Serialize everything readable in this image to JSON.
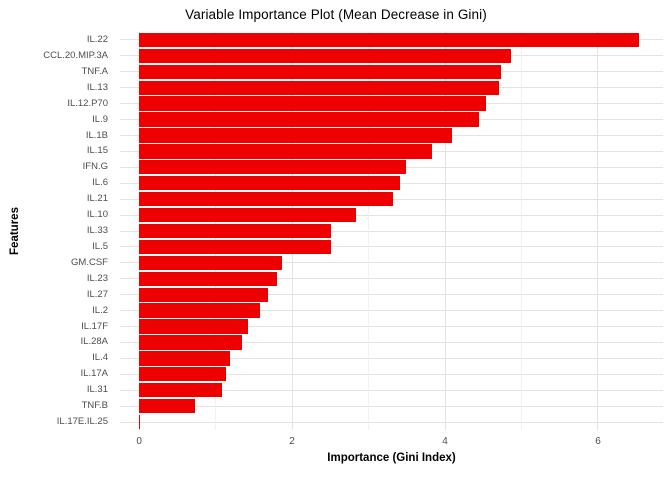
{
  "chart_data": {
    "type": "bar",
    "orientation": "horizontal",
    "title": "Variable Importance Plot (Mean Decrease in Gini)",
    "xlabel": "Importance (Gini Index)",
    "ylabel": "Features",
    "categories": [
      "IL.22",
      "CCL.20.MIP.3A",
      "TNF.A",
      "IL.13",
      "IL.12.P70",
      "IL.9",
      "IL.1B",
      "IL.15",
      "IFN.G",
      "IL.6",
      "IL.21",
      "IL.10",
      "IL.33",
      "IL.5",
      "GM.CSF",
      "IL.23",
      "IL.27",
      "IL.2",
      "IL.17F",
      "IL.28A",
      "IL.4",
      "IL.17A",
      "IL.31",
      "TNF.B",
      "IL.17E.IL.25"
    ],
    "values": [
      6.53,
      4.86,
      4.73,
      4.7,
      4.54,
      4.45,
      4.09,
      3.83,
      3.49,
      3.41,
      3.32,
      2.83,
      2.51,
      2.51,
      1.87,
      1.8,
      1.69,
      1.58,
      1.42,
      1.34,
      1.19,
      1.13,
      1.09,
      0.73,
      0.01
    ],
    "x_ticks": [
      0,
      2,
      4,
      6
    ],
    "x_minor_ticks": [
      1,
      3,
      5
    ],
    "xlim": [
      -0.25,
      6.85
    ],
    "bar_width_fraction": 0.9,
    "grid": "on",
    "legend": "none",
    "colors": {
      "bar": "#EE0000",
      "grid_major": "#E3E3E3",
      "grid_minor": "#F0F0F0",
      "axis_text": "#4D4D4D",
      "axis_title": "#000000",
      "title": "#000000",
      "background": "#FFFFFF"
    }
  }
}
